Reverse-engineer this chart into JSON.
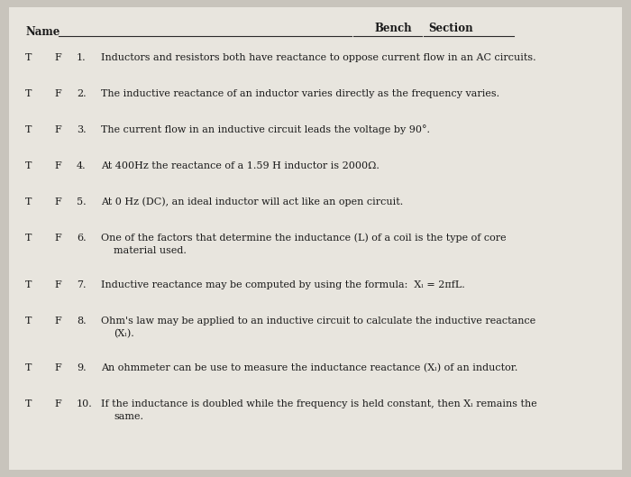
{
  "bg_color": "#c8c4bc",
  "paper_color": "#e8e5de",
  "name_label": "Name",
  "bench_label": "Bench",
  "section_label": "Section",
  "questions": [
    {
      "num": "1.",
      "text": "Inductors and resistors both have reactance to oppose current flow in an AC circuits.",
      "multiline": false
    },
    {
      "num": "2.",
      "text": "The inductive reactance of an inductor varies directly as the frequency varies.",
      "multiline": false
    },
    {
      "num": "3.",
      "text": "The current flow in an inductive circuit leads the voltage by 90°.",
      "multiline": false
    },
    {
      "num": "4.",
      "text": "At 400Hz the reactance of a 1.59 H inductor is 2000Ω.",
      "multiline": false
    },
    {
      "num": "5.",
      "text": "At 0 Hz (DC), an ideal inductor will act like an open circuit.",
      "multiline": false
    },
    {
      "num": "6.",
      "line1": "One of the factors that determine the inductance (L) of a coil is the type of core",
      "line2": "material used.",
      "multiline": true
    },
    {
      "num": "7.",
      "text": "Inductive reactance may be computed by using the formula:  Xₗ = 2πfL.",
      "multiline": false
    },
    {
      "num": "8.",
      "line1": "Ohm's law may be applied to an inductive circuit to calculate the inductive reactance",
      "line2": "(Xₗ).",
      "multiline": true
    },
    {
      "num": "9.",
      "text": "An ohmmeter can be use to measure the inductance reactance (Xₗ) of an inductor.",
      "multiline": false
    },
    {
      "num": "10.",
      "line1": "If the inductance is doubled while the frequency is held constant, then Xₗ remains the",
      "line2": "same.",
      "multiline": true
    }
  ],
  "font_size_header": 8.5,
  "font_size_body": 8.0,
  "text_color": "#1a1a1a",
  "line_color": "#2a2a2a"
}
